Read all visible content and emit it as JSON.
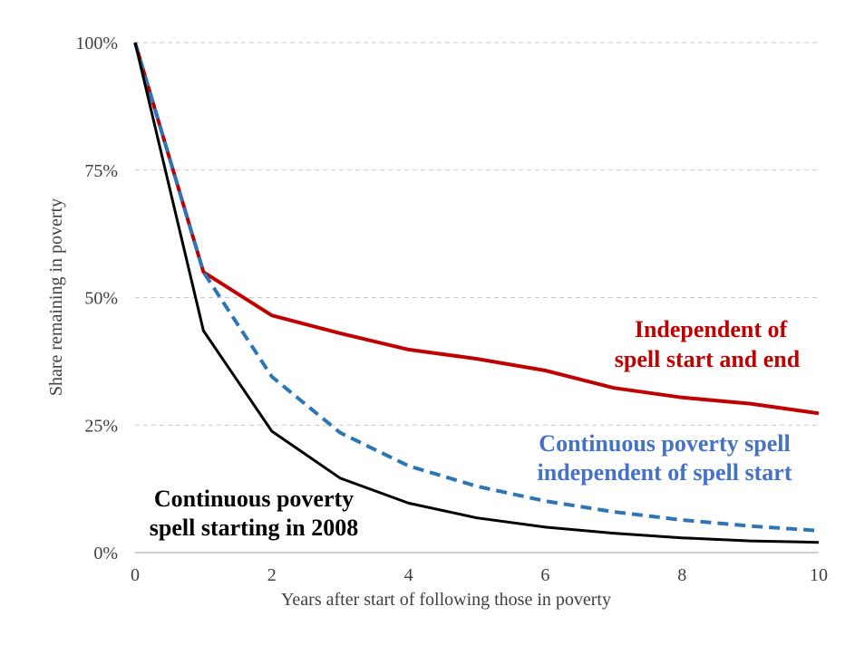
{
  "chart_data": {
    "type": "line",
    "title": "",
    "xlabel": "Years after start of following those in poverty",
    "ylabel": "Share remaining in poverty",
    "xlim": [
      0,
      10
    ],
    "ylim": [
      0,
      100
    ],
    "x_ticks": [
      0,
      2,
      4,
      6,
      8,
      10
    ],
    "y_ticks": [
      0,
      25,
      50,
      75,
      100
    ],
    "y_tick_labels": [
      "0%",
      "25%",
      "50%",
      "75%",
      "100%"
    ],
    "grid": "horizontal dashed",
    "x": [
      0,
      1,
      2,
      3,
      4,
      5,
      6,
      7,
      8,
      9,
      10
    ],
    "series": [
      {
        "name": "Independent of spell start and end",
        "color": "#c00000",
        "style": "solid",
        "values": [
          100,
          55,
          46.5,
          43,
          39.8,
          38,
          35.7,
          32.3,
          30.4,
          29.2,
          27.3
        ]
      },
      {
        "name": "Continuous poverty spell independent of spell start",
        "color": "#2e75b6",
        "style": "dashed",
        "values": [
          100,
          55,
          34.5,
          23.5,
          17,
          13,
          10.1,
          8,
          6.4,
          5.2,
          4.3
        ]
      },
      {
        "name": "Continuous poverty spell starting in 2008",
        "color": "#000000",
        "style": "solid",
        "values": [
          100,
          43.5,
          23.8,
          14.6,
          9.7,
          6.8,
          5,
          3.8,
          2.9,
          2.3,
          2
        ]
      }
    ],
    "annotations": [
      {
        "series": 0,
        "lines": [
          "Independent of",
          "spell start and end"
        ]
      },
      {
        "series": 1,
        "lines": [
          "Continuous poverty spell",
          "independent of spell start"
        ]
      },
      {
        "series": 2,
        "lines": [
          "Continuous poverty",
          "spell starting in 2008"
        ]
      }
    ]
  }
}
